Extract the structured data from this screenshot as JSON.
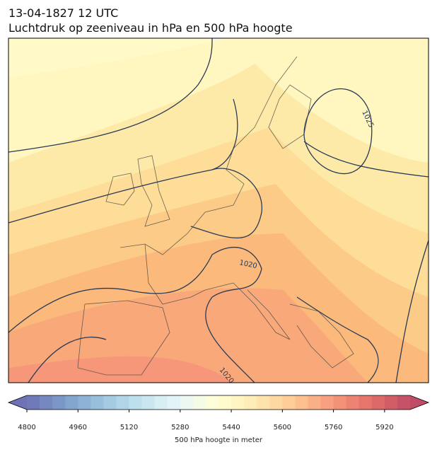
{
  "header": {
    "title": "13-04-1827 12 UTC",
    "subtitle": "Luchtdruk op zeeniveau in hPa en 500 hPa hoogte"
  },
  "map": {
    "contour_labels": [
      1025,
      1020,
      1020
    ]
  },
  "colorbar": {
    "label": "500 hPa hoogte in meter",
    "lim": [
      4800,
      6000
    ],
    "ticks": [
      4800,
      4960,
      5120,
      5280,
      5440,
      5600,
      5760,
      5920
    ]
  }
}
